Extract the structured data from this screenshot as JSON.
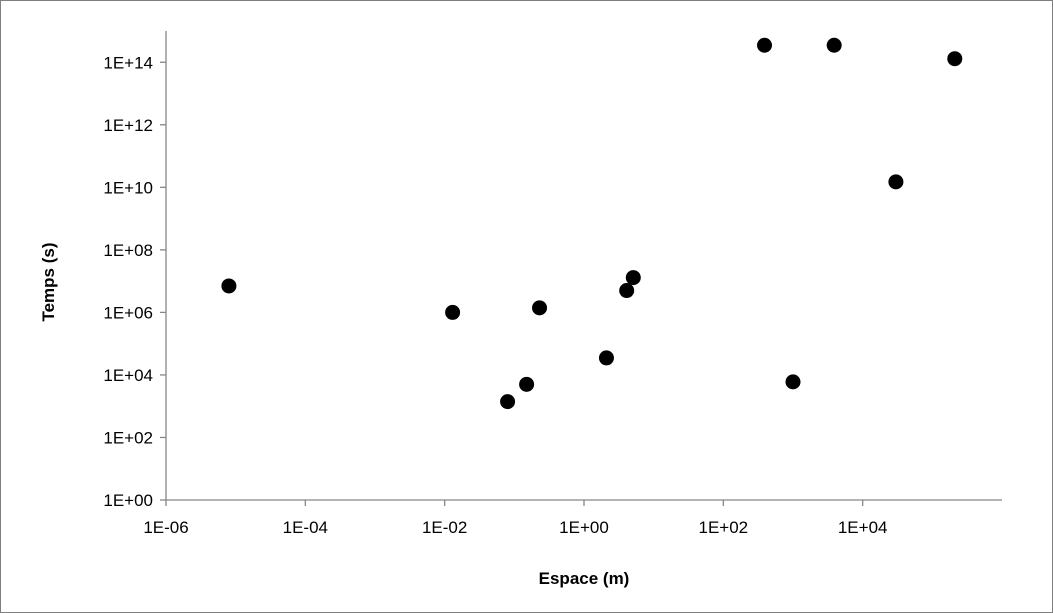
{
  "chart_data": {
    "type": "scatter",
    "xlabel": "Espace (m)",
    "ylabel": "Temps (s)",
    "xscale": "log",
    "yscale": "log",
    "xlim": [
      1e-06,
      1000000.0
    ],
    "ylim": [
      1,
      1000000000000000.0
    ],
    "x_ticks": [
      1e-06,
      0.0001,
      0.01,
      1,
      100,
      10000
    ],
    "x_tick_labels": [
      "1E-06",
      "1E-04",
      "1E-02",
      "1E+00",
      "1E+02",
      "1E+04"
    ],
    "y_ticks": [
      1,
      100,
      10000,
      1000000,
      100000000,
      10000000000,
      1000000000000,
      100000000000000
    ],
    "y_tick_labels": [
      "1E+00",
      "1E+02",
      "1E+04",
      "1E+06",
      "1E+08",
      "1E+10",
      "1E+12",
      "1E+14"
    ],
    "grid": false,
    "legend": "none",
    "marker_color": "#000000",
    "points": [
      {
        "x": 8e-06,
        "y": 7000000.0
      },
      {
        "x": 0.013,
        "y": 1000000.0
      },
      {
        "x": 0.08,
        "y": 1400.0
      },
      {
        "x": 0.15,
        "y": 5000.0
      },
      {
        "x": 0.23,
        "y": 1400000.0
      },
      {
        "x": 2.1,
        "y": 35000.0
      },
      {
        "x": 4.1,
        "y": 5000000.0
      },
      {
        "x": 5.1,
        "y": 13000000.0
      },
      {
        "x": 390,
        "y": 350000000000000.0
      },
      {
        "x": 1000,
        "y": 6000.0
      },
      {
        "x": 3900,
        "y": 350000000000000.0
      },
      {
        "x": 30000,
        "y": 15000000000.0
      },
      {
        "x": 210000,
        "y": 130000000000000.0
      }
    ]
  }
}
